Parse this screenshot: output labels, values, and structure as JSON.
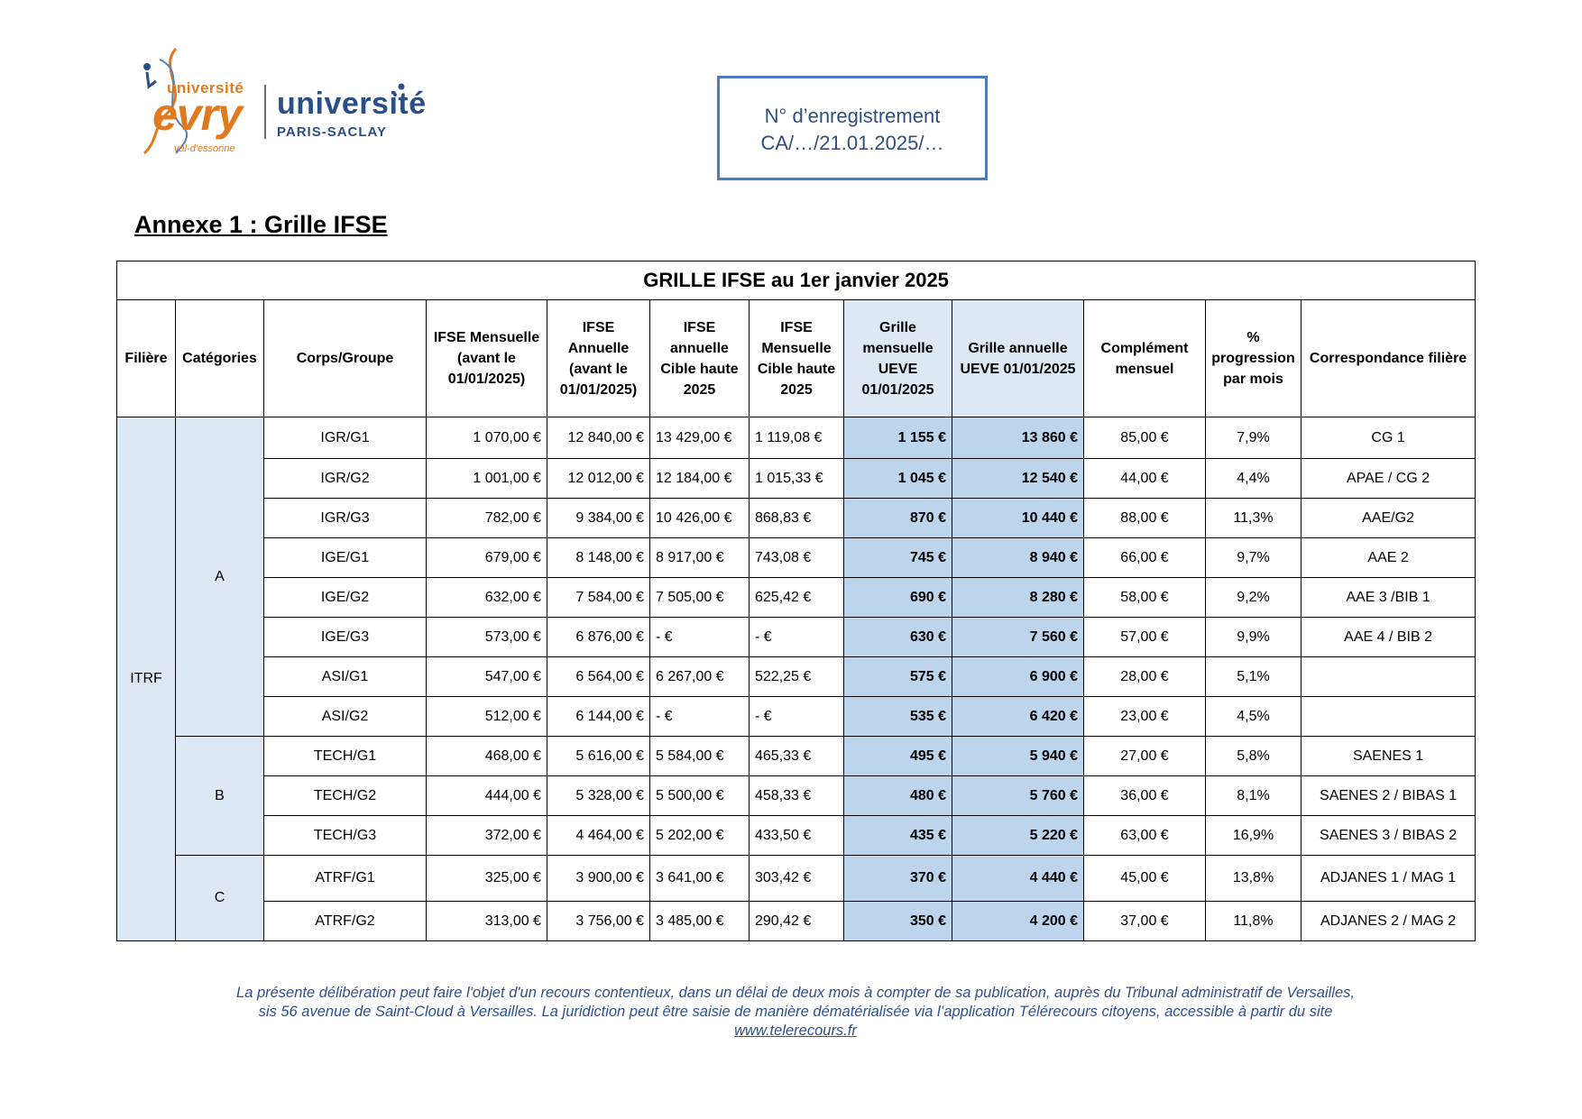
{
  "logos": {
    "evry_top": "université",
    "evry_main": "evry",
    "evry_sub": "val-d'essonne",
    "paris_saclay_top": "université",
    "paris_saclay_bottom": "PARIS-SACLAY"
  },
  "registration": {
    "line1": "N° d’enregistrement",
    "line2": "CA/…/21.01.2025/…"
  },
  "annex_title": "Annexe 1 : Grille IFSE",
  "table": {
    "title": "GRILLE IFSE au 1er janvier 2025",
    "headers": [
      "Filière",
      "Catégories",
      "Corps/Groupe",
      "IFSE Mensuelle (avant le 01/01/2025)",
      "IFSE Annuelle (avant le 01/01/2025)",
      "IFSE annuelle Cible haute 2025",
      "IFSE Mensuelle Cible haute 2025",
      "Grille mensuelle UEVE 01/01/2025",
      "Grille annuelle UEVE 01/01/2025",
      "Complément mensuel",
      "% progression par mois",
      "Correspondance filière"
    ],
    "filiere": "ITRF",
    "categories": [
      "A",
      "B",
      "C"
    ],
    "rows": [
      {
        "groupe": "IGR/G1",
        "mens_avant": "1 070,00 €",
        "ann_avant": "12 840,00 €",
        "ann_cible": "13 429,00 €",
        "mens_cible": "1 119,08 €",
        "grille_mens": "1 155 €",
        "grille_ann": "13 860 €",
        "complement": "85,00 €",
        "progression": "7,9%",
        "correspondance": "CG 1"
      },
      {
        "groupe": "IGR/G2",
        "mens_avant": "1 001,00 €",
        "ann_avant": "12 012,00 €",
        "ann_cible": "12 184,00 €",
        "mens_cible": "1 015,33 €",
        "grille_mens": "1 045 €",
        "grille_ann": "12 540 €",
        "complement": "44,00 €",
        "progression": "4,4%",
        "correspondance": "APAE / CG 2"
      },
      {
        "groupe": "IGR/G3",
        "mens_avant": "782,00 €",
        "ann_avant": "9 384,00 €",
        "ann_cible": "10 426,00 €",
        "mens_cible": "868,83 €",
        "grille_mens": "870 €",
        "grille_ann": "10 440 €",
        "complement": "88,00 €",
        "progression": "11,3%",
        "correspondance": "AAE/G2"
      },
      {
        "groupe": "IGE/G1",
        "mens_avant": "679,00 €",
        "ann_avant": "8 148,00 €",
        "ann_cible": "8 917,00 €",
        "mens_cible": "743,08 €",
        "grille_mens": "745 €",
        "grille_ann": "8 940 €",
        "complement": "66,00 €",
        "progression": "9,7%",
        "correspondance": "AAE 2"
      },
      {
        "groupe": "IGE/G2",
        "mens_avant": "632,00 €",
        "ann_avant": "7 584,00 €",
        "ann_cible": "7 505,00 €",
        "mens_cible": "625,42 €",
        "grille_mens": "690 €",
        "grille_ann": "8 280 €",
        "complement": "58,00 €",
        "progression": "9,2%",
        "correspondance": "AAE 3 /BIB 1"
      },
      {
        "groupe": "IGE/G3",
        "mens_avant": "573,00 €",
        "ann_avant": "6 876,00 €",
        "ann_cible": "-   €",
        "mens_cible": "-   €",
        "grille_mens": "630 €",
        "grille_ann": "7 560 €",
        "complement": "57,00 €",
        "progression": "9,9%",
        "correspondance": "AAE 4 / BIB 2"
      },
      {
        "groupe": "ASI/G1",
        "mens_avant": "547,00 €",
        "ann_avant": "6 564,00 €",
        "ann_cible": "6 267,00 €",
        "mens_cible": "522,25 €",
        "grille_mens": "575 €",
        "grille_ann": "6 900 €",
        "complement": "28,00 €",
        "progression": "5,1%",
        "correspondance": ""
      },
      {
        "groupe": "ASI/G2",
        "mens_avant": "512,00 €",
        "ann_avant": "6 144,00 €",
        "ann_cible": "-   €",
        "mens_cible": "-   €",
        "grille_mens": "535 €",
        "grille_ann": "6 420 €",
        "complement": "23,00 €",
        "progression": "4,5%",
        "correspondance": ""
      },
      {
        "groupe": "TECH/G1",
        "mens_avant": "468,00 €",
        "ann_avant": "5 616,00 €",
        "ann_cible": "5 584,00 €",
        "mens_cible": "465,33 €",
        "grille_mens": "495 €",
        "grille_ann": "5 940 €",
        "complement": "27,00 €",
        "progression": "5,8%",
        "correspondance": "SAENES 1"
      },
      {
        "groupe": "TECH/G2",
        "mens_avant": "444,00 €",
        "ann_avant": "5 328,00 €",
        "ann_cible": "5 500,00 €",
        "mens_cible": "458,33 €",
        "grille_mens": "480 €",
        "grille_ann": "5 760 €",
        "complement": "36,00 €",
        "progression": "8,1%",
        "correspondance": "SAENES 2 / BIBAS 1"
      },
      {
        "groupe": "TECH/G3",
        "mens_avant": "372,00 €",
        "ann_avant": "4 464,00 €",
        "ann_cible": "5 202,00 €",
        "mens_cible": "433,50 €",
        "grille_mens": "435 €",
        "grille_ann": "5 220 €",
        "complement": "63,00 €",
        "progression": "16,9%",
        "correspondance": "SAENES 3 / BIBAS 2"
      },
      {
        "groupe": "ATRF/G1",
        "mens_avant": "325,00 €",
        "ann_avant": "3 900,00 €",
        "ann_cible": "3 641,00 €",
        "mens_cible": "303,42 €",
        "grille_mens": "370 €",
        "grille_ann": "4 440 €",
        "complement": "45,00 €",
        "progression": "13,8%",
        "correspondance": "ADJANES 1 / MAG 1"
      },
      {
        "groupe": "ATRF/G2",
        "mens_avant": "313,00 €",
        "ann_avant": "3 756,00 €",
        "ann_cible": "3 485,00 €",
        "mens_cible": "290,42 €",
        "grille_mens": "350 €",
        "grille_ann": "4 200 €",
        "complement": "37,00 €",
        "progression": "11,8%",
        "correspondance": "ADJANES 2 / MAG 2"
      }
    ]
  },
  "footer": {
    "line1": "La présente délibération peut faire l'objet d'un recours contentieux, dans un délai de deux mois à compter de sa publication, auprès du Tribunal administratif de Versailles,",
    "line2": "sis 56 avenue de Saint-Cloud à Versailles. La juridiction peut être saisie de manière dématérialisée via l’application Télérecours citoyens, accessible à partir du site",
    "link": "www.telerecours.fr"
  },
  "colors": {
    "accent_blue": "#4a7ac1",
    "highlight_header": "#dce9f5",
    "highlight_cells": "#bcd5ec",
    "evry_orange": "#e07a1f",
    "saclay_blue": "#2a4f86",
    "footer_text": "#2f4f8f"
  }
}
